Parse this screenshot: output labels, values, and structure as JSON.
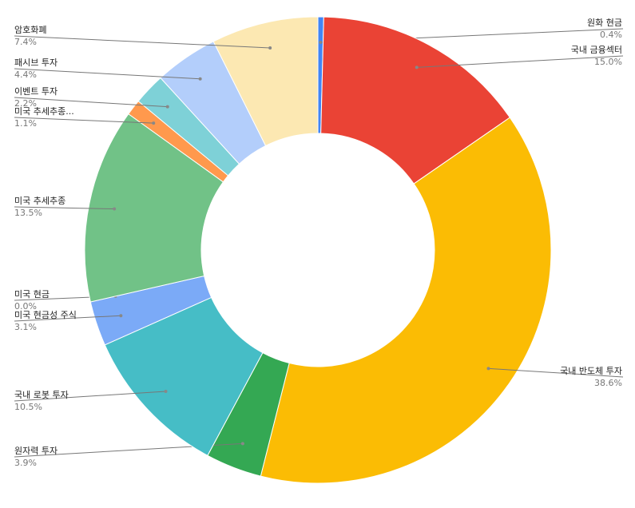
{
  "chart_data": {
    "type": "donut",
    "categories": [
      "원화 현금",
      "국내 금융섹터",
      "국내 반도체 투자",
      "원자력 투자",
      "국내 로봇 투자",
      "미국 현금성 주식",
      "미국 현금",
      "미국 추세추종",
      "미국 추세추종...",
      "이벤트 투자",
      "패시브 투자",
      "암호화폐"
    ],
    "values": [
      0.4,
      15.0,
      38.6,
      3.9,
      10.5,
      3.1,
      0.0,
      13.5,
      1.1,
      2.2,
      4.4,
      7.4
    ],
    "value_labels": [
      "0.4%",
      "15.0%",
      "38.6%",
      "3.9%",
      "10.5%",
      "3.1%",
      "0.0%",
      "13.5%",
      "1.1%",
      "2.2%",
      "4.4%",
      "7.4%"
    ],
    "colors": [
      "#4285f4",
      "#ea4335",
      "#fbbc04",
      "#34a853",
      "#46bdc6",
      "#7baaf7",
      "#f07b72",
      "#71c287",
      "#ff994d",
      "#7ed1d7",
      "#b3cefb",
      "#fce8b2"
    ]
  }
}
